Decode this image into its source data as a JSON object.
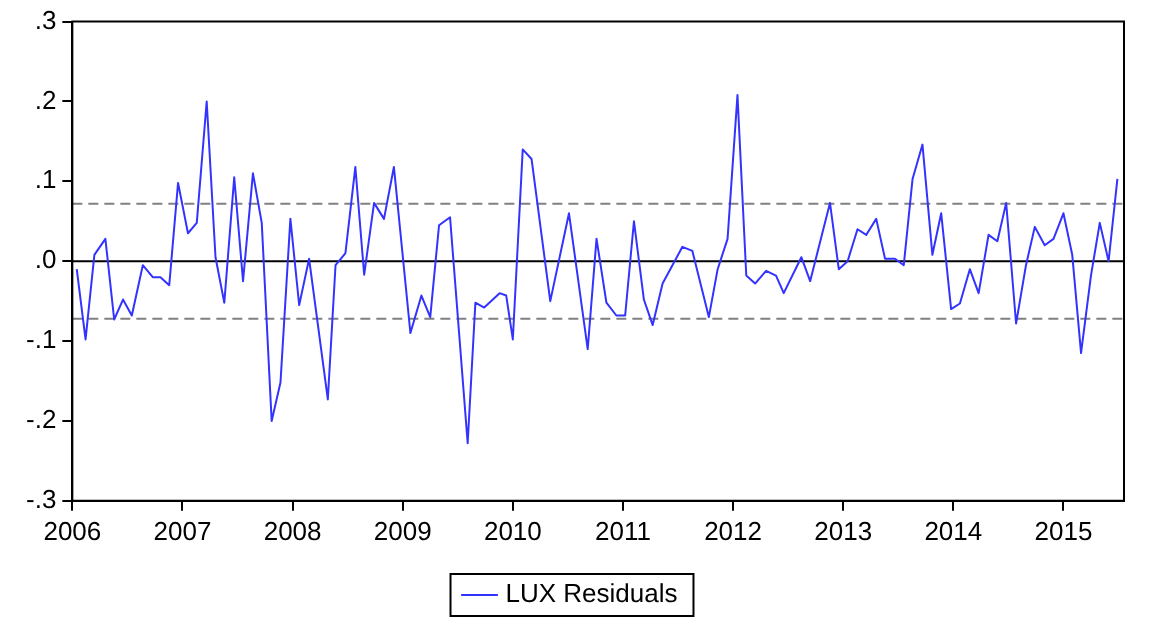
{
  "chart_data": {
    "type": "line",
    "x": [
      2006.04,
      2006.12,
      2006.2,
      2006.3,
      2006.38,
      2006.46,
      2006.54,
      2006.64,
      2006.73,
      2006.8,
      2006.88,
      2006.96,
      2007.05,
      2007.13,
      2007.22,
      2007.3,
      2007.38,
      2007.47,
      2007.55,
      2007.64,
      2007.72,
      2007.81,
      2007.89,
      2007.98,
      2008.06,
      2008.15,
      2008.32,
      2008.39,
      2008.48,
      2008.57,
      2008.65,
      2008.74,
      2008.83,
      2008.92,
      2009.07,
      2009.17,
      2009.25,
      2009.33,
      2009.43,
      2009.59,
      2009.66,
      2009.74,
      2009.88,
      2009.94,
      2010.0,
      2010.09,
      2010.17,
      2010.34,
      2010.51,
      2010.68,
      2010.76,
      2010.85,
      2010.94,
      2011.02,
      2011.1,
      2011.19,
      2011.27,
      2011.36,
      2011.54,
      2011.63,
      2011.78,
      2011.86,
      2011.95,
      2012.04,
      2012.12,
      2012.2,
      2012.3,
      2012.39,
      2012.46,
      2012.62,
      2012.7,
      2012.88,
      2012.96,
      2013.04,
      2013.13,
      2013.21,
      2013.3,
      2013.38,
      2013.47,
      2013.55,
      2013.63,
      2013.72,
      2013.81,
      2013.89,
      2013.98,
      2014.06,
      2014.15,
      2014.23,
      2014.32,
      2014.4,
      2014.48,
      2014.57,
      2014.66,
      2014.74,
      2014.83,
      2014.91,
      2015.0,
      2015.08,
      2015.16,
      2015.25,
      2015.33,
      2015.41,
      2015.49
    ],
    "series": [
      {
        "name": "LUX Residuals",
        "color": "#3333ff",
        "values": [
          -0.01,
          -0.098,
          0.008,
          0.028,
          -0.073,
          -0.048,
          -0.068,
          -0.005,
          -0.02,
          -0.02,
          -0.03,
          0.098,
          0.035,
          0.048,
          0.2,
          0.005,
          -0.052,
          0.105,
          -0.025,
          0.11,
          0.048,
          -0.2,
          -0.152,
          0.053,
          -0.055,
          0.003,
          -0.173,
          -0.005,
          0.01,
          0.118,
          -0.017,
          0.073,
          0.053,
          0.118,
          -0.09,
          -0.043,
          -0.07,
          0.045,
          0.055,
          -0.228,
          -0.052,
          -0.058,
          -0.04,
          -0.043,
          -0.098,
          0.14,
          0.128,
          -0.05,
          0.06,
          -0.11,
          0.028,
          -0.052,
          -0.068,
          -0.068,
          0.05,
          -0.048,
          -0.08,
          -0.028,
          0.018,
          0.013,
          -0.07,
          -0.01,
          0.028,
          0.208,
          -0.018,
          -0.028,
          -0.012,
          -0.018,
          -0.04,
          0.005,
          -0.025,
          0.073,
          -0.01,
          0,
          0.04,
          0.033,
          0.053,
          0.003,
          0.003,
          -0.005,
          0.103,
          0.146,
          0.008,
          0.06,
          -0.06,
          -0.053,
          -0.01,
          -0.04,
          0.033,
          0.025,
          0.073,
          -0.078,
          -0.005,
          0.043,
          0.02,
          0.028,
          0.06,
          0.008,
          -0.115,
          -0.018,
          0.048,
          0,
          0.103
        ]
      }
    ],
    "xlim": [
      2006,
      2015.55
    ],
    "xticks": [
      2006,
      2007,
      2008,
      2009,
      2010,
      2011,
      2012,
      2013,
      2014,
      2015
    ],
    "ylim": [
      -0.3,
      0.3
    ],
    "yticks": [
      {
        "value": -0.3,
        "label": "-.3"
      },
      {
        "value": -0.2,
        "label": "-.2"
      },
      {
        "value": -0.1,
        "label": "-.1"
      },
      {
        "value": 0,
        "label": ".0"
      },
      {
        "value": 0.1,
        "label": ".1"
      },
      {
        "value": 0.2,
        "label": ".2"
      },
      {
        "value": 0.3,
        "label": ".3"
      }
    ],
    "ref_lines": [
      {
        "axis": "y",
        "value": 0,
        "color": "#000000",
        "line_style": "solid"
      },
      {
        "axis": "y",
        "value": 0.072,
        "color": "#808080",
        "line_style": "dashed"
      },
      {
        "axis": "y",
        "value": -0.072,
        "color": "#808080",
        "line_style": "dashed"
      }
    ],
    "grid": false,
    "legend": "bottom",
    "marker": "none",
    "line_style": "solid"
  }
}
